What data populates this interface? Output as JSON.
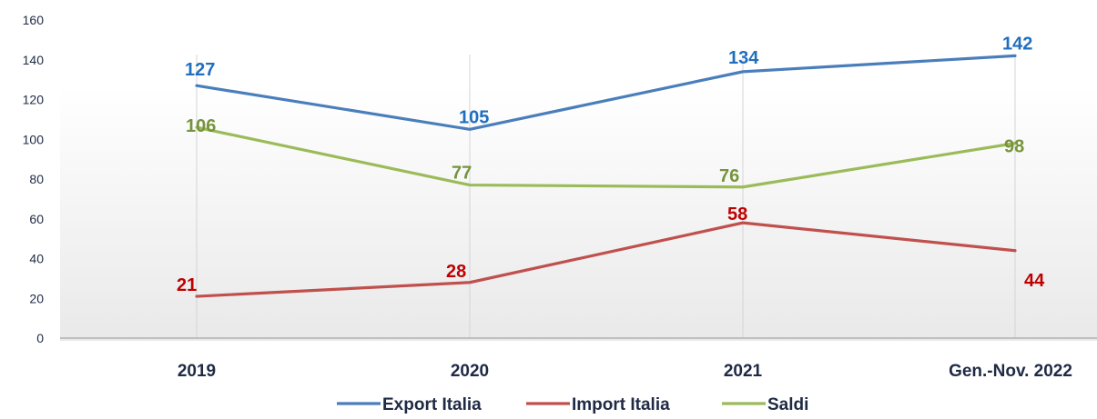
{
  "chart_data": {
    "type": "line",
    "categories": [
      "2019",
      "2020",
      "2021",
      "Gen.-Nov. 2022"
    ],
    "series": [
      {
        "name": "Export Italia",
        "values": [
          127,
          105,
          134,
          142
        ],
        "color": "#4a7ebb"
      },
      {
        "name": "Import Italia",
        "values": [
          21,
          28,
          58,
          44
        ],
        "color": "#c0504d"
      },
      {
        "name": "Saldi",
        "values": [
          106,
          77,
          76,
          98
        ],
        "color": "#9bbb59"
      }
    ],
    "label_colors": [
      "#1f6fbf",
      "#c00000",
      "#77933c"
    ],
    "yticks": [
      0,
      20,
      40,
      60,
      80,
      100,
      120,
      140,
      160
    ],
    "ylim": [
      0,
      160
    ],
    "grid": "vertical lines at categories",
    "legend_position": "bottom-center",
    "title": ""
  }
}
